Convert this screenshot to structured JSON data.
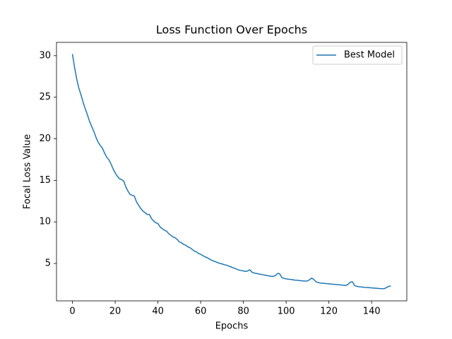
{
  "chart_data": {
    "type": "line",
    "title": "Loss Function Over Epochs",
    "x_label": "Epochs",
    "y_label": "Focal Loss Value",
    "x": [
      0,
      1,
      2,
      3,
      4,
      5,
      6,
      7,
      8,
      9,
      10,
      11,
      12,
      13,
      14,
      15,
      16,
      17,
      18,
      19,
      20,
      21,
      22,
      23,
      24,
      25,
      26,
      27,
      28,
      29,
      30,
      31,
      32,
      33,
      34,
      35,
      36,
      37,
      38,
      39,
      40,
      41,
      42,
      43,
      44,
      45,
      46,
      47,
      48,
      49,
      50,
      51,
      52,
      53,
      54,
      55,
      56,
      57,
      58,
      59,
      60,
      61,
      62,
      63,
      64,
      65,
      66,
      67,
      68,
      69,
      70,
      71,
      72,
      73,
      74,
      75,
      76,
      77,
      78,
      79,
      80,
      81,
      82,
      83,
      84,
      85,
      86,
      87,
      88,
      89,
      90,
      91,
      92,
      93,
      94,
      95,
      96,
      97,
      98,
      99,
      100,
      101,
      102,
      103,
      104,
      105,
      106,
      107,
      108,
      109,
      110,
      111,
      112,
      113,
      114,
      115,
      116,
      117,
      118,
      119,
      120,
      121,
      122,
      123,
      124,
      125,
      126,
      127,
      128,
      129,
      130,
      131,
      132,
      133,
      134,
      135,
      136,
      137,
      138,
      139,
      140,
      141,
      142,
      143,
      144,
      145,
      146,
      147,
      148,
      149
    ],
    "series": [
      {
        "name": "Best Model",
        "color": "#1f77b4",
        "values": [
          30.2,
          28.6,
          27.2,
          26.1,
          25.3,
          24.4,
          23.6,
          22.9,
          22.1,
          21.5,
          20.9,
          20.2,
          19.6,
          19.2,
          18.9,
          18.3,
          17.8,
          17.5,
          17.0,
          16.4,
          15.9,
          15.5,
          15.2,
          15.1,
          14.9,
          14.2,
          13.7,
          13.3,
          13.2,
          13.1,
          12.4,
          12.0,
          11.6,
          11.3,
          11.1,
          10.9,
          10.9,
          10.4,
          10.1,
          9.9,
          9.8,
          9.4,
          9.2,
          9.0,
          8.9,
          8.6,
          8.4,
          8.2,
          8.1,
          7.9,
          7.6,
          7.5,
          7.3,
          7.2,
          7.0,
          6.9,
          6.7,
          6.5,
          6.4,
          6.2,
          6.1,
          5.95,
          5.8,
          5.7,
          5.55,
          5.4,
          5.3,
          5.2,
          5.1,
          5.0,
          4.95,
          4.85,
          4.8,
          4.7,
          4.6,
          4.5,
          4.4,
          4.3,
          4.2,
          4.15,
          4.1,
          4.05,
          4.1,
          4.25,
          3.95,
          3.85,
          3.8,
          3.75,
          3.7,
          3.65,
          3.6,
          3.55,
          3.5,
          3.45,
          3.45,
          3.55,
          3.8,
          3.75,
          3.3,
          3.2,
          3.15,
          3.1,
          3.08,
          3.05,
          3.0,
          2.98,
          2.95,
          2.92,
          2.9,
          2.88,
          2.9,
          3.05,
          3.25,
          3.05,
          2.8,
          2.7,
          2.65,
          2.62,
          2.6,
          2.57,
          2.55,
          2.52,
          2.5,
          2.48,
          2.45,
          2.43,
          2.4,
          2.38,
          2.35,
          2.5,
          2.75,
          2.8,
          2.35,
          2.25,
          2.2,
          2.18,
          2.15,
          2.12,
          2.1,
          2.08,
          2.06,
          2.04,
          2.02,
          2.0,
          1.98,
          1.97,
          1.98,
          2.1,
          2.25,
          2.28
        ]
      }
    ],
    "xlim": [
      -7.45,
      156.45
    ],
    "ylim": [
      0.5,
      31.6
    ],
    "xticks": [
      0,
      20,
      40,
      60,
      80,
      100,
      120,
      140
    ],
    "yticks": [
      5,
      10,
      15,
      20,
      25,
      30
    ],
    "legend": "upper right"
  }
}
